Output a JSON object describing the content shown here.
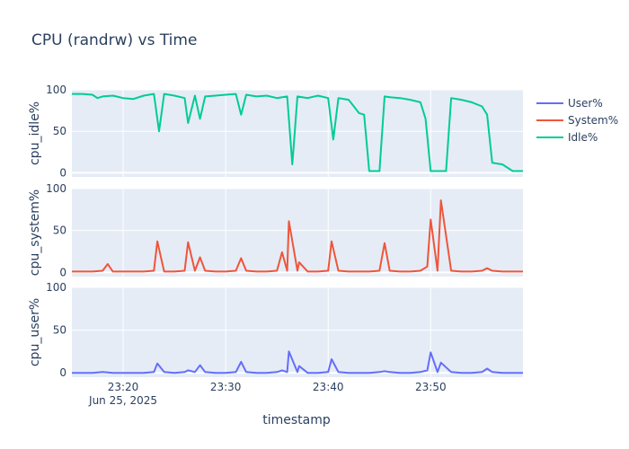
{
  "chart_data": {
    "type": "line",
    "title": "CPU (randrw) vs Time",
    "xlabel": "timestamp",
    "x_range": [
      "23:15",
      "23:59"
    ],
    "x_ticks": [
      "23:20",
      "23:30",
      "23:40",
      "23:50"
    ],
    "x_date_label": "Jun 25, 2025",
    "legend": {
      "placement": "right-top",
      "entries": [
        "User%",
        "System%",
        "Idle%"
      ]
    },
    "colors": {
      "User%": "#636efa",
      "System%": "#ef553b",
      "Idle%": "#00cc96",
      "plot_bg": "#e5ecf6",
      "grid": "#ffffff",
      "text": "#2a3f5f"
    },
    "panels": [
      {
        "ylabel": "cpu_idle%",
        "series": "Idle%",
        "ylim": [
          -5,
          100
        ],
        "yticks": [
          0,
          50,
          100
        ]
      },
      {
        "ylabel": "cpu_system%",
        "series": "System%",
        "ylim": [
          -5,
          100
        ],
        "yticks": [
          0,
          50,
          100
        ]
      },
      {
        "ylabel": "cpu_user%",
        "series": "User%",
        "ylim": [
          -5,
          100
        ],
        "yticks": [
          0,
          50,
          100
        ]
      }
    ],
    "series": [
      {
        "name": "Idle%",
        "x": [
          "23:15",
          "23:16",
          "23:17",
          "23:17:30",
          "23:18",
          "23:19",
          "23:20",
          "23:21",
          "23:22",
          "23:23",
          "23:23:30",
          "23:24",
          "23:25",
          "23:26",
          "23:26:20",
          "23:27",
          "23:27:30",
          "23:28",
          "23:29",
          "23:30",
          "23:31",
          "23:31:30",
          "23:32",
          "23:33",
          "23:34",
          "23:35",
          "23:36",
          "23:36:30",
          "23:37",
          "23:38",
          "23:39",
          "23:40",
          "23:40:30",
          "23:41",
          "23:42",
          "23:42:30",
          "23:43",
          "23:43:30",
          "23:44",
          "23:44:30",
          "23:45",
          "23:45:30",
          "23:46",
          "23:47",
          "23:48",
          "23:49",
          "23:49:30",
          "23:50",
          "23:51",
          "23:51:30",
          "23:52",
          "23:53",
          "23:54",
          "23:55",
          "23:55:30",
          "23:56",
          "23:57",
          "23:58",
          "23:59"
        ],
        "values": [
          95,
          95,
          94,
          90,
          92,
          93,
          90,
          89,
          93,
          95,
          50,
          95,
          93,
          90,
          60,
          93,
          65,
          92,
          93,
          94,
          95,
          70,
          94,
          92,
          93,
          90,
          92,
          10,
          92,
          90,
          93,
          90,
          40,
          90,
          88,
          80,
          72,
          70,
          2,
          2,
          2,
          92,
          91,
          90,
          88,
          85,
          65,
          2,
          2,
          2,
          90,
          88,
          85,
          80,
          70,
          12,
          10,
          2,
          2
        ]
      },
      {
        "name": "System%",
        "x": [
          "23:15",
          "23:16",
          "23:17",
          "23:18",
          "23:18:30",
          "23:19",
          "23:20",
          "23:21",
          "23:22",
          "23:23",
          "23:23:20",
          "23:24",
          "23:25",
          "23:26",
          "23:26:20",
          "23:27",
          "23:27:30",
          "23:28",
          "23:29",
          "23:30",
          "23:31",
          "23:31:30",
          "23:32",
          "23:33",
          "23:34",
          "23:35",
          "23:35:30",
          "23:36",
          "23:36:10",
          "23:37",
          "23:37:10",
          "23:38",
          "23:39",
          "23:40",
          "23:40:20",
          "23:41",
          "23:42",
          "23:43",
          "23:44",
          "23:45",
          "23:45:30",
          "23:46",
          "23:47",
          "23:48",
          "23:49",
          "23:49:40",
          "23:50",
          "23:50:40",
          "23:51",
          "23:52",
          "23:53",
          "23:54",
          "23:55",
          "23:55:30",
          "23:56",
          "23:57",
          "23:58",
          "23:59"
        ],
        "values": [
          1,
          1,
          1,
          2,
          10,
          1,
          1,
          1,
          1,
          2,
          37,
          1,
          1,
          2,
          36,
          2,
          18,
          2,
          1,
          1,
          2,
          17,
          2,
          1,
          1,
          2,
          24,
          2,
          61,
          2,
          12,
          1,
          1,
          2,
          37,
          2,
          1,
          1,
          1,
          2,
          35,
          2,
          1,
          1,
          2,
          7,
          63,
          2,
          86,
          2,
          1,
          1,
          2,
          5,
          2,
          1,
          1,
          1
        ]
      },
      {
        "name": "User%",
        "x": [
          "23:15",
          "23:16",
          "23:17",
          "23:18",
          "23:19",
          "23:20",
          "23:21",
          "23:22",
          "23:23",
          "23:23:20",
          "23:24",
          "23:25",
          "23:26",
          "23:26:20",
          "23:27",
          "23:27:30",
          "23:28",
          "23:29",
          "23:30",
          "23:31",
          "23:31:30",
          "23:32",
          "23:33",
          "23:34",
          "23:35",
          "23:35:30",
          "23:36",
          "23:36:10",
          "23:37",
          "23:37:10",
          "23:38",
          "23:39",
          "23:40",
          "23:40:20",
          "23:41",
          "23:42",
          "23:43",
          "23:44",
          "23:45",
          "23:45:30",
          "23:46",
          "23:47",
          "23:48",
          "23:49",
          "23:49:40",
          "23:50",
          "23:50:40",
          "23:51",
          "23:52",
          "23:53",
          "23:54",
          "23:55",
          "23:55:30",
          "23:56",
          "23:57",
          "23:58",
          "23:59"
        ],
        "values": [
          0,
          0,
          0,
          1,
          0,
          0,
          0,
          0,
          1,
          11,
          1,
          0,
          1,
          3,
          1,
          9,
          1,
          0,
          0,
          1,
          13,
          1,
          0,
          0,
          1,
          3,
          1,
          25,
          1,
          8,
          0,
          0,
          1,
          16,
          1,
          0,
          0,
          0,
          1,
          2,
          1,
          0,
          0,
          1,
          3,
          24,
          1,
          12,
          1,
          0,
          0,
          1,
          5,
          1,
          0,
          0,
          0
        ]
      }
    ]
  }
}
